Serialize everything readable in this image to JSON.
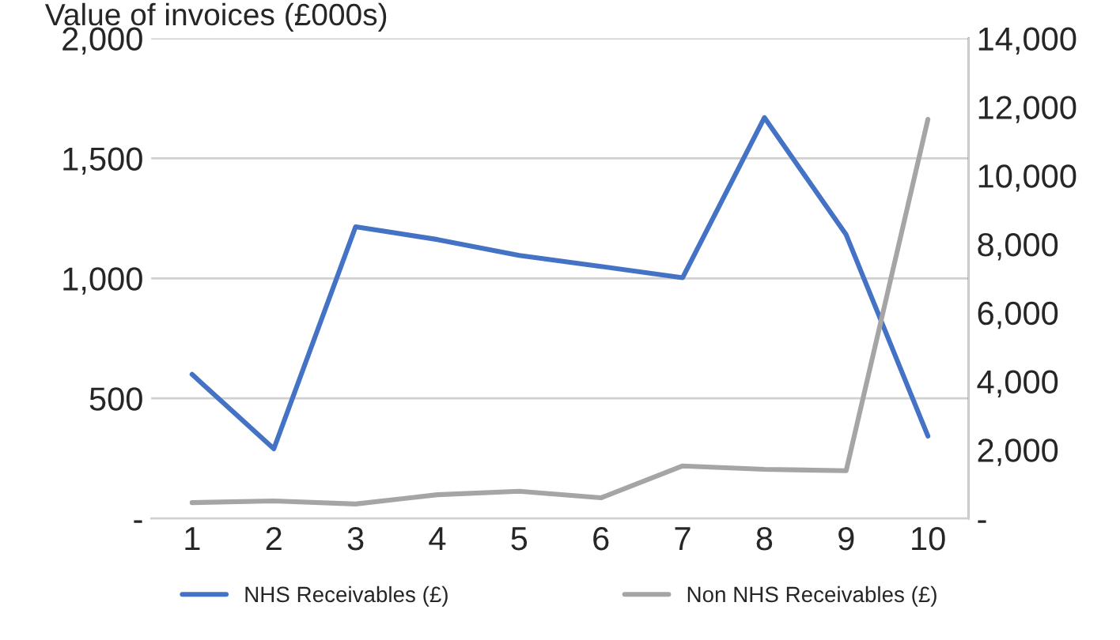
{
  "chart_data": {
    "type": "line",
    "title": "Value of invoices (£000s)",
    "categories": [
      "1",
      "2",
      "3",
      "4",
      "5",
      "6",
      "7",
      "8",
      "9",
      "10"
    ],
    "series": [
      {
        "name": "NHS Receivables (£)",
        "color": "#4472c4",
        "values": [
          600,
          290,
          1215,
          1162,
          1096,
          1050,
          1003,
          1670,
          1182,
          343
        ]
      },
      {
        "name": "Non NHS Receivables (£)",
        "color": "#a5a5a5",
        "axis": "y2",
        "values": [
          460,
          510,
          420,
          690,
          790,
          600,
          1530,
          1430,
          1390,
          11640
        ]
      }
    ],
    "ylim": [
      0,
      2000
    ],
    "yticks": [
      {
        "value": 0,
        "label": "-"
      },
      {
        "value": 500,
        "label": "500"
      },
      {
        "value": 1000,
        "label": "1,000"
      },
      {
        "value": 1500,
        "label": "1,500"
      },
      {
        "value": 2000,
        "label": "2,000"
      }
    ],
    "y2lim": [
      0,
      14000
    ],
    "y2ticks": [
      {
        "value": 0,
        "label": "-"
      },
      {
        "value": 2000,
        "label": "2,000"
      },
      {
        "value": 4000,
        "label": "4,000"
      },
      {
        "value": 6000,
        "label": "6,000"
      },
      {
        "value": 8000,
        "label": "8,000"
      },
      {
        "value": 10000,
        "label": "10,000"
      },
      {
        "value": 12000,
        "label": "12,000"
      },
      {
        "value": 14000,
        "label": "14,000"
      }
    ],
    "grid": "y",
    "legend": "bottom",
    "marker": "none",
    "line_style": "solid"
  }
}
